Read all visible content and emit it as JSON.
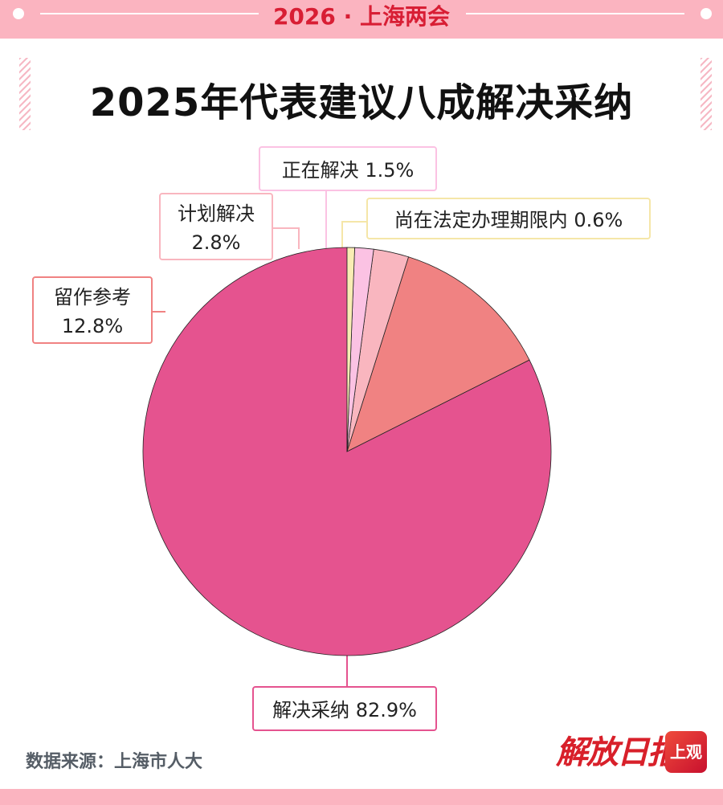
{
  "header": {
    "tag": "2026 · 上海两会"
  },
  "chart_data": {
    "type": "pie",
    "title": "2025年代表建议八成解决采纳",
    "slices": [
      {
        "label": "解决采纳",
        "value": 82.9,
        "display": "解决采纳 82.9%",
        "color": "#e5538f"
      },
      {
        "label": "留作参考",
        "value": 12.8,
        "display": "12.8%",
        "color": "#f08282"
      },
      {
        "label": "计划解决",
        "value": 2.8,
        "display": "2.8%",
        "color": "#f9b6bf"
      },
      {
        "label": "正在解决",
        "value": 1.5,
        "display": "正在解决 1.5%",
        "color": "#fbc2e3"
      },
      {
        "label": "尚在法定办理期限内",
        "value": 0.6,
        "display": "尚在法定办理期限内 0.6%",
        "color": "#f9edb4"
      }
    ]
  },
  "footer": {
    "source": "数据来源：上海市人大",
    "brand": "解放日报",
    "app_logo": "上观"
  }
}
